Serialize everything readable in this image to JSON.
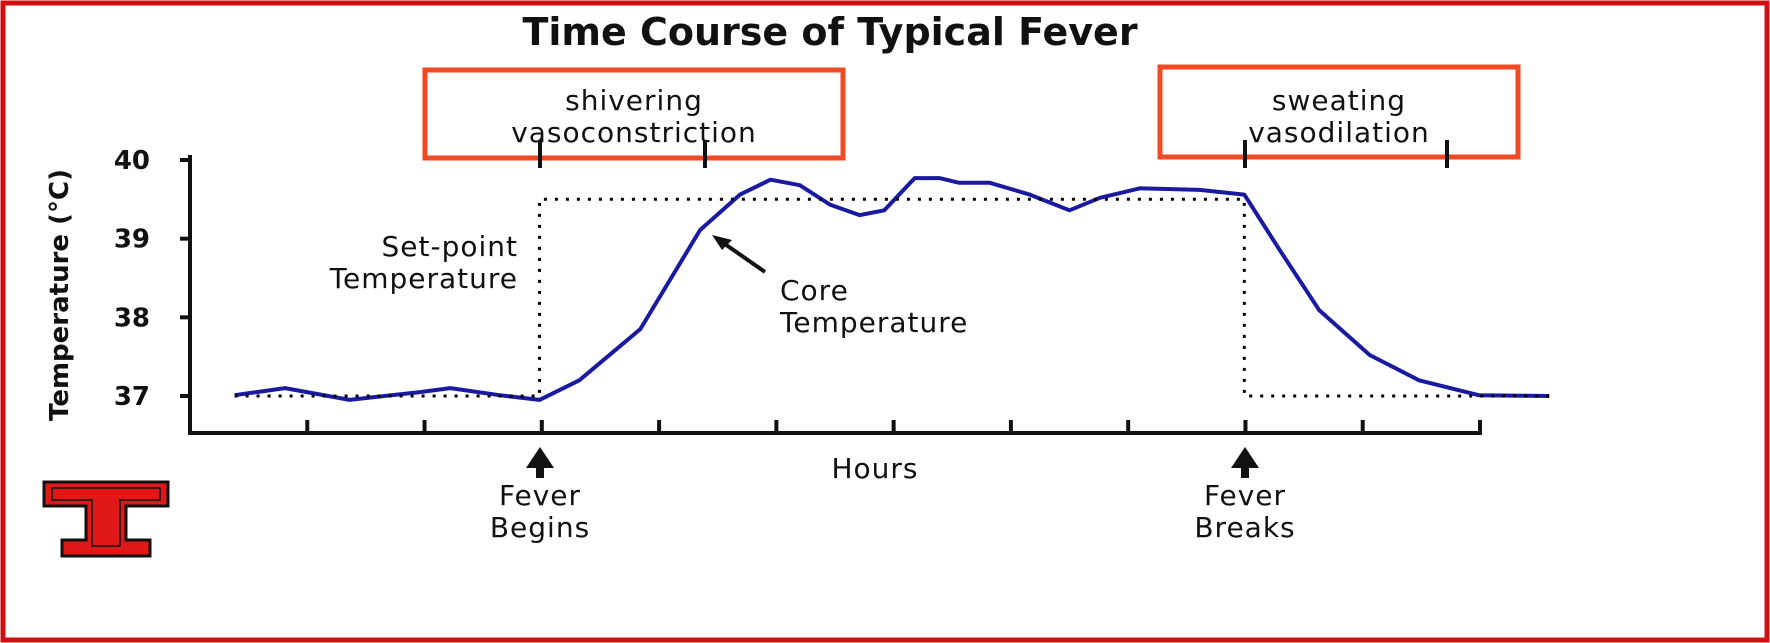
{
  "chart_data": {
    "type": "line",
    "title": "Time Course of Typical Fever",
    "x_label": "Hours",
    "y_label": "Temperature (°C)",
    "xlim": [
      0,
      11
    ],
    "xticks": [
      1,
      2,
      3,
      4,
      5,
      6,
      7,
      8,
      9,
      10,
      11
    ],
    "ylim": [
      36.5,
      40
    ],
    "yticks": [
      37,
      38,
      39,
      40
    ],
    "grid": false,
    "series": [
      {
        "color": "#1a1aa0",
        "style": "solid",
        "x": [
          0.38,
          0.81,
          1.36,
          1.96,
          2.22,
          2.64,
          2.98,
          3.32,
          3.84,
          4.35,
          4.69,
          4.95,
          5.2,
          5.46,
          5.71,
          5.92,
          6.18,
          6.39,
          6.56,
          6.82,
          7.16,
          7.5,
          7.76,
          8.1,
          8.61,
          8.99,
          9.29,
          9.63,
          10.06,
          10.48,
          10.99,
          11.59
        ],
        "values": [
          37.01,
          37.1,
          36.95,
          37.05,
          37.1,
          37.01,
          36.95,
          37.2,
          37.85,
          39.11,
          39.56,
          39.75,
          39.68,
          39.43,
          39.3,
          39.36,
          39.77,
          39.77,
          39.71,
          39.71,
          39.56,
          39.36,
          39.52,
          39.64,
          39.62,
          39.56,
          38.86,
          38.09,
          37.52,
          37.2,
          37.01,
          37.0
        ]
      },
      {
        "color": "#000000",
        "style": "dotted",
        "x": [
          0.38,
          2.98,
          2.98,
          8.99,
          8.99,
          11.59
        ],
        "values": [
          37,
          37,
          39.5,
          39.5,
          37,
          37
        ]
      }
    ],
    "annotations": [
      {
        "lines": [
          "shivering",
          "vasoconstriction"
        ]
      },
      {
        "lines": [
          "sweating",
          "vasodilation"
        ]
      },
      {
        "lines": [
          "Set-point",
          "Temperature"
        ]
      },
      {
        "lines": [
          "Core",
          "Temperature"
        ]
      },
      {
        "lines": [
          "Fever",
          "Begins"
        ]
      },
      {
        "lines": [
          "Fever",
          "Breaks"
        ]
      }
    ]
  }
}
